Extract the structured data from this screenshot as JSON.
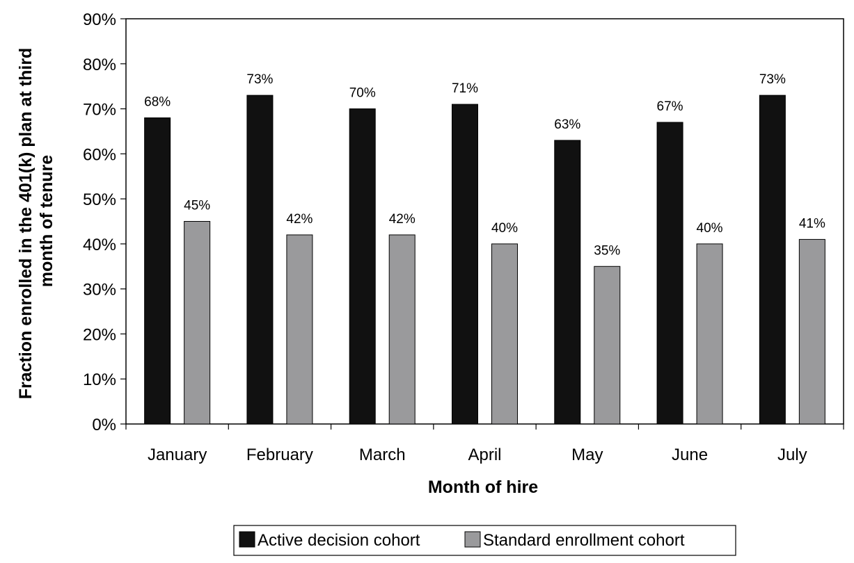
{
  "chart_data": {
    "type": "bar",
    "categories": [
      "January",
      "February",
      "March",
      "April",
      "May",
      "June",
      "July"
    ],
    "series": [
      {
        "name": "Active decision cohort",
        "values": [
          68,
          73,
          70,
          71,
          63,
          67,
          73
        ],
        "color": "#111111"
      },
      {
        "name": "Standard enrollment cohort",
        "values": [
          45,
          42,
          42,
          40,
          35,
          40,
          41
        ],
        "color": "#9a9a9c"
      }
    ],
    "xlabel": "Month of hire",
    "ylabel_lines": [
      "Fraction enrolled in the 401(k) plan at third",
      "month of tenure"
    ],
    "ylim": [
      0,
      90
    ],
    "yticks": [
      0,
      10,
      20,
      30,
      40,
      50,
      60,
      70,
      80,
      90
    ],
    "value_format": "percent",
    "grid": false,
    "legend_position": "bottom"
  }
}
